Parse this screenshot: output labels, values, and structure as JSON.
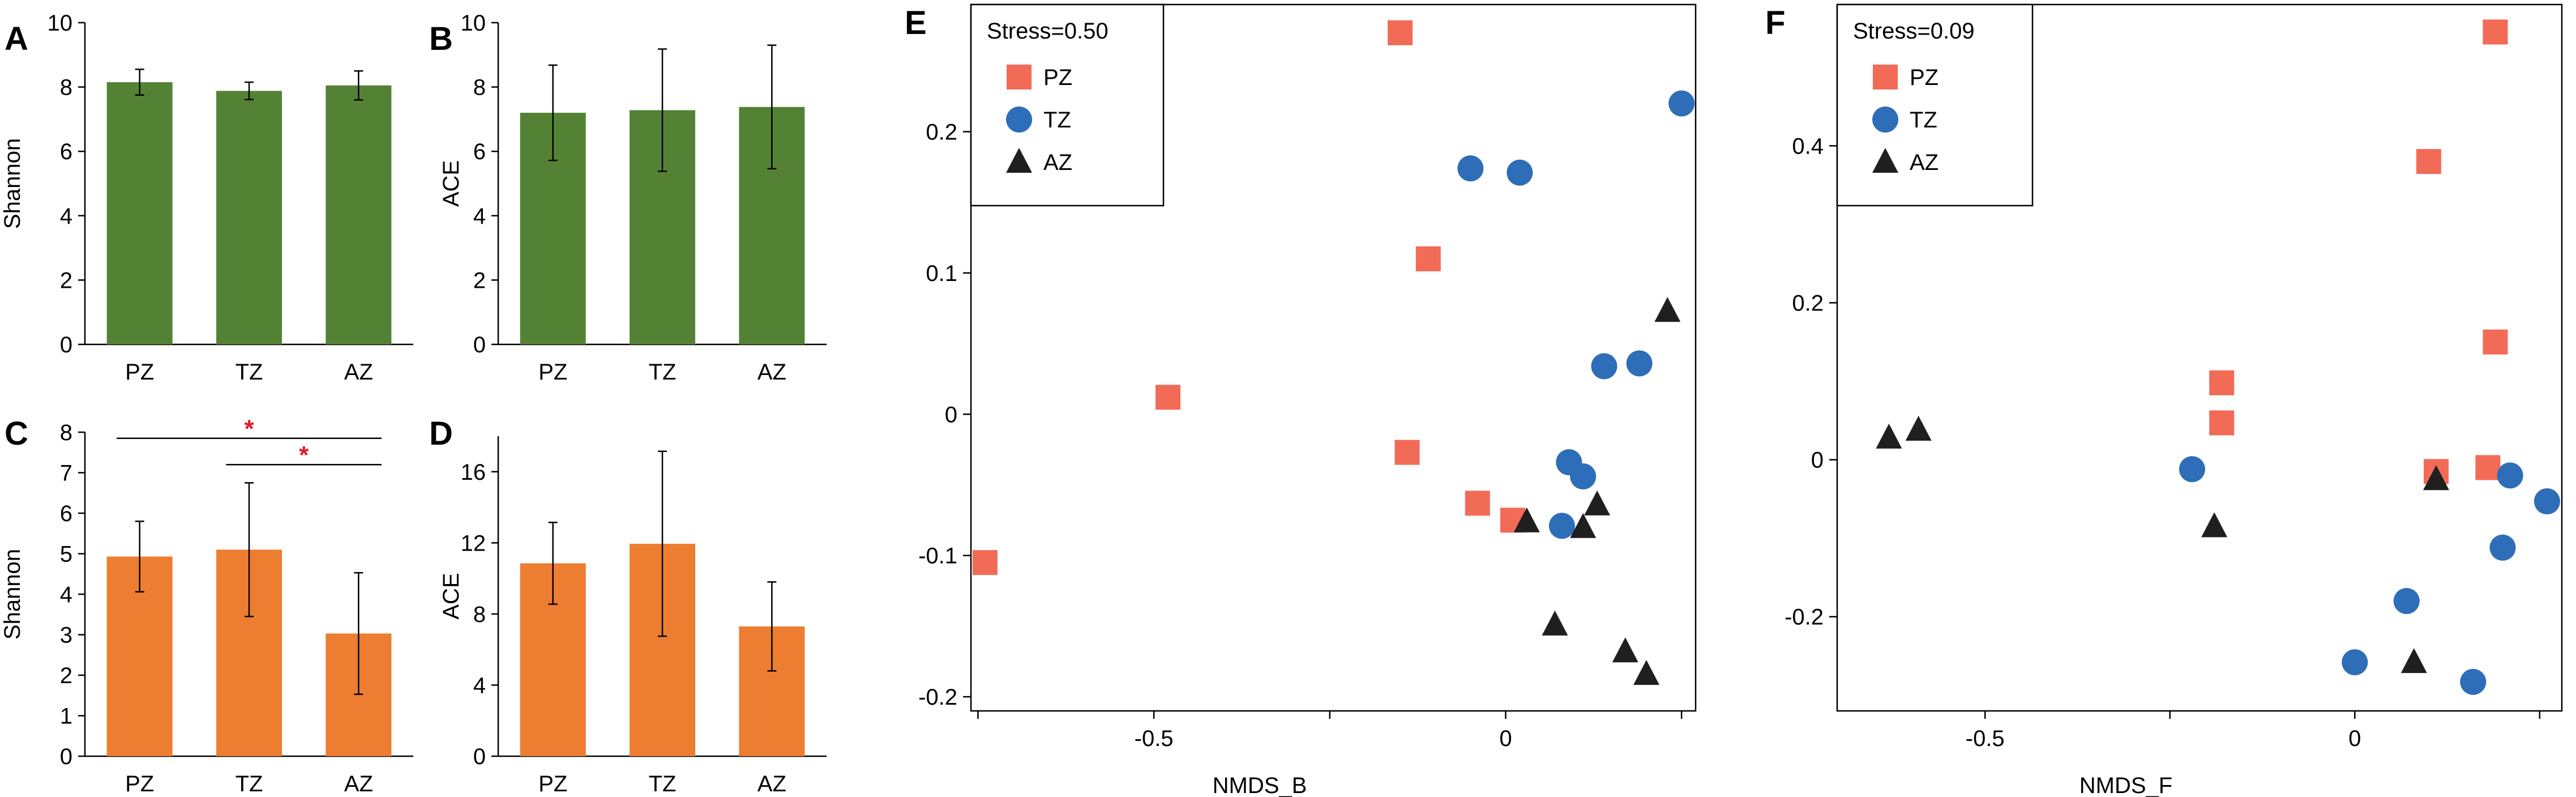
{
  "colors": {
    "bacteria_bar": "#548235",
    "fungi_bar": "#ED7D31",
    "PZ": "#F26B57",
    "TZ": "#2E6DB8",
    "AZ": "#1F1F1F",
    "significance": "#E8152A"
  },
  "chart_data": [
    {
      "panel": "A",
      "type": "bar",
      "ylabel": "Shannon",
      "categories": [
        "PZ",
        "TZ",
        "AZ"
      ],
      "values": [
        8.15,
        7.88,
        8.05
      ],
      "errors": [
        0.4,
        0.27,
        0.45
      ],
      "ylim": [
        0,
        10
      ],
      "yticks": [
        0,
        2,
        4,
        6,
        8,
        10
      ],
      "color_key": "bacteria_bar"
    },
    {
      "panel": "B",
      "type": "bar",
      "ylabel": "ACE",
      "categories": [
        "PZ",
        "TZ",
        "AZ"
      ],
      "values": [
        7.2,
        7.28,
        7.38
      ],
      "errors": [
        1.48,
        1.9,
        1.92
      ],
      "ylim": [
        0,
        10
      ],
      "yticks": [
        0,
        2,
        4,
        6,
        8,
        10
      ],
      "color_key": "bacteria_bar"
    },
    {
      "panel": "C",
      "type": "bar",
      "ylabel": "Shannon",
      "categories": [
        "PZ",
        "TZ",
        "AZ"
      ],
      "values": [
        4.93,
        5.1,
        3.03
      ],
      "errors": [
        0.87,
        1.65,
        1.5
      ],
      "ylim": [
        0,
        8
      ],
      "yticks": [
        0,
        1,
        2,
        3,
        4,
        5,
        6,
        7,
        8
      ],
      "color_key": "fungi_bar",
      "significance": [
        {
          "from": 0,
          "to": 2,
          "y": 7.85,
          "label": "*"
        },
        {
          "from": 1,
          "to": 2,
          "y": 7.2,
          "label": "*"
        }
      ]
    },
    {
      "panel": "D",
      "type": "bar",
      "ylabel": "ACE",
      "categories": [
        "PZ",
        "TZ",
        "AZ"
      ],
      "values": [
        10.85,
        11.95,
        7.3
      ],
      "errors": [
        2.3,
        5.2,
        2.5
      ],
      "ylim": [
        0,
        18
      ],
      "yticks": [
        0,
        4,
        8,
        12,
        16
      ],
      "color_key": "fungi_bar"
    },
    {
      "panel": "E",
      "type": "scatter",
      "xlabel": "NMDS_B",
      "ylabel": "",
      "stress_label": "Stress=0.50",
      "xlim": [
        -0.76,
        0.27
      ],
      "ylim": [
        -0.21,
        0.29
      ],
      "xticks": [
        -0.5,
        0.0
      ],
      "yticks": [
        -0.2,
        -0.1,
        0.0,
        0.1,
        0.2
      ],
      "series": [
        {
          "name": "PZ",
          "marker": "square",
          "points": [
            [
              -0.15,
              0.27
            ],
            [
              -0.11,
              0.11
            ],
            [
              -0.48,
              0.012
            ],
            [
              -0.14,
              -0.027
            ],
            [
              -0.04,
              -0.063
            ],
            [
              0.01,
              -0.075
            ],
            [
              -0.74,
              -0.105
            ]
          ]
        },
        {
          "name": "TZ",
          "marker": "circle",
          "points": [
            [
              0.25,
              0.22
            ],
            [
              -0.05,
              0.174
            ],
            [
              0.02,
              0.171
            ],
            [
              0.14,
              0.034
            ],
            [
              0.19,
              0.036
            ],
            [
              0.09,
              -0.034
            ],
            [
              0.11,
              -0.044
            ],
            [
              0.08,
              -0.079
            ]
          ]
        },
        {
          "name": "AZ",
          "marker": "triangle",
          "points": [
            [
              0.23,
              0.073
            ],
            [
              0.13,
              -0.064
            ],
            [
              0.11,
              -0.08
            ],
            [
              0.03,
              -0.076
            ],
            [
              0.07,
              -0.149
            ],
            [
              0.17,
              -0.168
            ],
            [
              0.2,
              -0.184
            ]
          ]
        }
      ]
    },
    {
      "panel": "F",
      "type": "scatter",
      "xlabel": "NMDS_F",
      "ylabel": "",
      "stress_label": "Stress=0.09",
      "xlim": [
        -0.7,
        0.28
      ],
      "ylim": [
        -0.32,
        0.58
      ],
      "xticks": [
        -0.5,
        0.0
      ],
      "yticks": [
        -0.2,
        0.0,
        0.2,
        0.4
      ],
      "series": [
        {
          "name": "PZ",
          "marker": "square",
          "points": [
            [
              0.19,
              0.545
            ],
            [
              0.1,
              0.38
            ],
            [
              0.19,
              0.15
            ],
            [
              -0.18,
              0.098
            ],
            [
              -0.18,
              0.047
            ],
            [
              0.11,
              -0.015
            ],
            [
              0.18,
              -0.01
            ]
          ]
        },
        {
          "name": "TZ",
          "marker": "circle",
          "points": [
            [
              -0.22,
              -0.012
            ],
            [
              0.21,
              -0.02
            ],
            [
              0.26,
              -0.053
            ],
            [
              0.2,
              -0.112
            ],
            [
              0.07,
              -0.18
            ],
            [
              0.0,
              -0.258
            ],
            [
              0.16,
              -0.283
            ]
          ]
        },
        {
          "name": "AZ",
          "marker": "triangle",
          "points": [
            [
              -0.63,
              0.028
            ],
            [
              -0.59,
              0.038
            ],
            [
              -0.19,
              -0.085
            ],
            [
              0.11,
              -0.025
            ],
            [
              0.08,
              -0.258
            ]
          ]
        }
      ]
    }
  ]
}
